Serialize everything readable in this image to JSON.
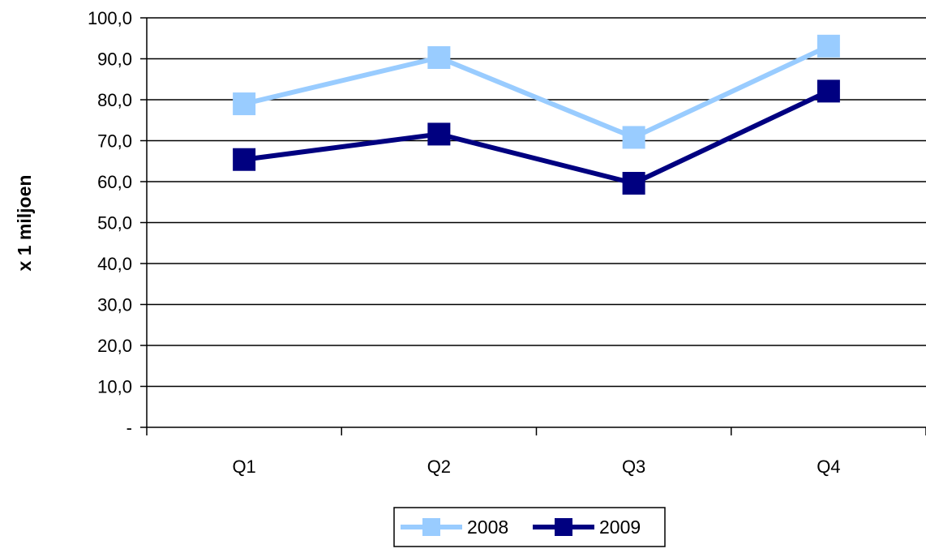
{
  "chart_data": {
    "type": "line",
    "title": "",
    "xlabel": "",
    "ylabel": "x 1 miljoen",
    "categories": [
      "Q1",
      "Q2",
      "Q3",
      "Q4"
    ],
    "ylim": [
      0,
      100
    ],
    "y_ticks": [
      0,
      10,
      20,
      30,
      40,
      50,
      60,
      70,
      80,
      90,
      100
    ],
    "y_tick_labels": [
      "-",
      "10,0",
      "20,0",
      "30,0",
      "40,0",
      "50,0",
      "60,0",
      "70,0",
      "80,0",
      "90,0",
      "100,0"
    ],
    "grid": "horizontal",
    "legend_position": "bottom",
    "markers": "square",
    "series": [
      {
        "name": "2008",
        "color": "#99ccff",
        "values": [
          79.0,
          90.3,
          70.8,
          93.1
        ]
      },
      {
        "name": "2009",
        "color": "#000080",
        "values": [
          65.4,
          71.6,
          59.6,
          82.1
        ]
      }
    ]
  }
}
